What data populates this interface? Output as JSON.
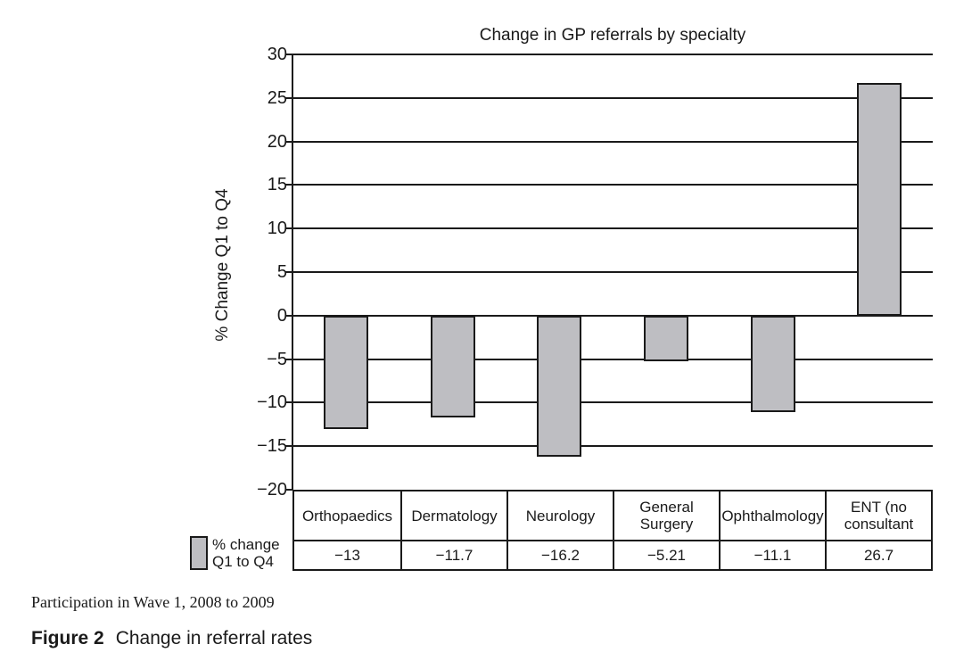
{
  "chart_data": {
    "type": "bar",
    "title": "Change in GP referrals by specialty",
    "xlabel": "",
    "ylabel": "% Change Q1 to Q4",
    "categories": [
      "Orthopaedics",
      "Dermatology",
      "Neurology",
      "General\nSurgery",
      "Ophthalmology",
      "ENT (no\nconsultant"
    ],
    "series": [
      {
        "name": "% change\nQ1 to Q4",
        "values": [
          -13,
          -11.7,
          -16.2,
          -5.21,
          -11.1,
          26.7
        ]
      }
    ],
    "value_labels": [
      "−13",
      "−11.7",
      "−16.2",
      "−5.21",
      "−11.1",
      "26.7"
    ],
    "ylim": [
      -20,
      30
    ],
    "ytick_step": 5,
    "yticks": [
      "30",
      "25",
      "20",
      "15",
      "10",
      "5",
      "0",
      "−5",
      "−10",
      "−15",
      "−20"
    ],
    "grid": true,
    "legend_position": "bottom-left",
    "data_table_shown": true,
    "bar_color": "#bebec2",
    "line_color": "#1a1a1a"
  },
  "captions": {
    "participation": "Participation in Wave 1, 2008 to 2009",
    "figure_label": "Figure 2",
    "figure_title": "Change in referral rates"
  }
}
